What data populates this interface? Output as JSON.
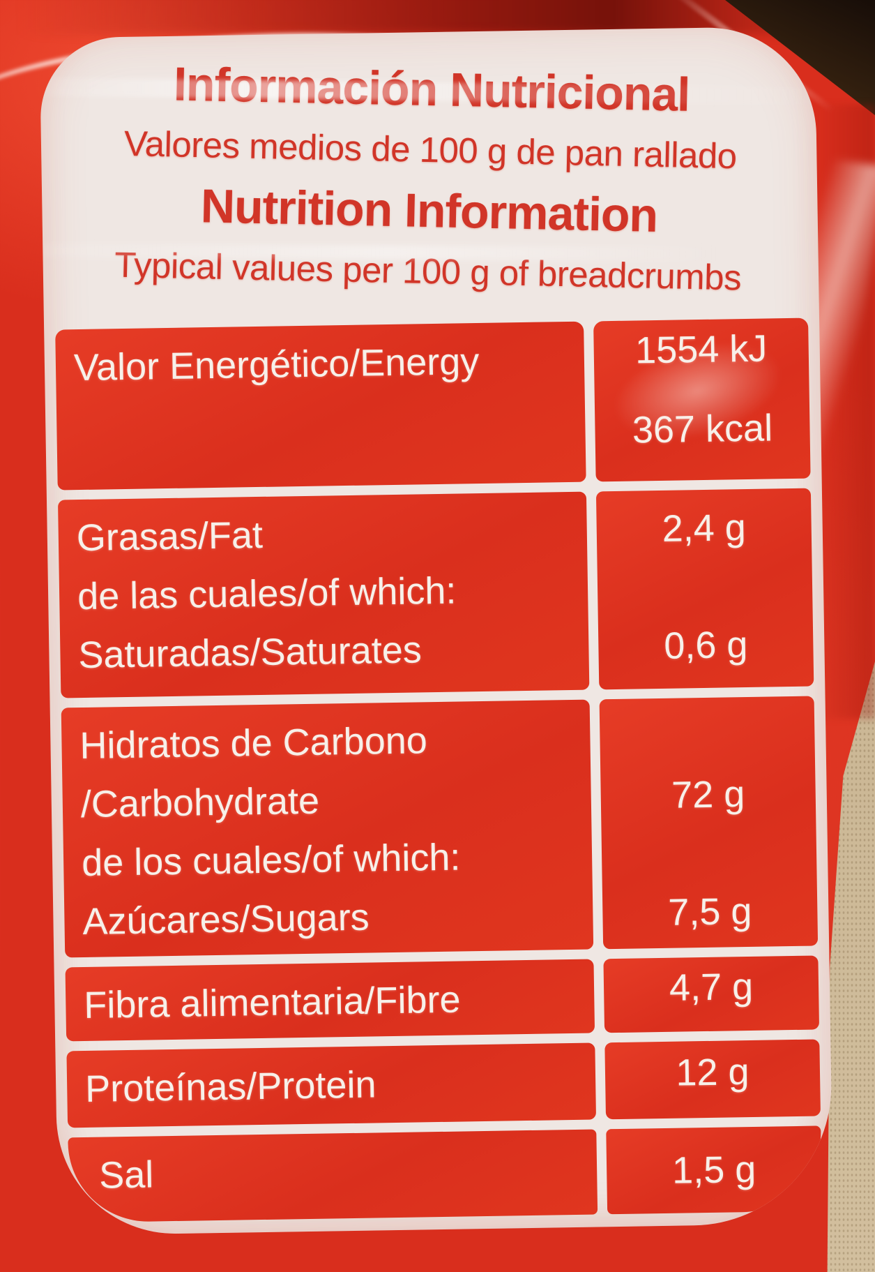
{
  "colors": {
    "package_red": "#d92e1d",
    "label_background": "#efe7e3",
    "header_text_red": "#d13528",
    "table_text_white": "#f7f0e9",
    "shelf_tan": "#cbb795",
    "corner_dark_brown": "#33200f"
  },
  "header": {
    "title_es": "Información Nutricional",
    "subtitle_es": "Valores medios de 100 g de pan rallado",
    "title_en": "Nutrition Information",
    "subtitle_en": "Typical values per 100 g of breadcrumbs"
  },
  "nutrition": {
    "rows": [
      {
        "label_lines": [
          "Valor Energético/Energy"
        ],
        "values": [
          "1554 kJ",
          "367 kcal"
        ]
      },
      {
        "label_lines": [
          "Grasas/Fat",
          "de las cuales/of which:",
          "Saturadas/Saturates"
        ],
        "values": [
          "2,4 g",
          "0,6 g"
        ]
      },
      {
        "label_lines": [
          "Hidratos de Carbono",
          "/Carbohydrate",
          "de los cuales/of which:",
          "Azúcares/Sugars"
        ],
        "values": [
          "72 g",
          "7,5 g"
        ]
      },
      {
        "label_lines": [
          "Fibra alimentaria/Fibre"
        ],
        "values": [
          "4,7 g"
        ]
      },
      {
        "label_lines": [
          "Proteínas/Protein"
        ],
        "values": [
          "12 g"
        ]
      },
      {
        "label_lines": [
          "Sal"
        ],
        "values": [
          "1,5 g"
        ]
      }
    ]
  }
}
